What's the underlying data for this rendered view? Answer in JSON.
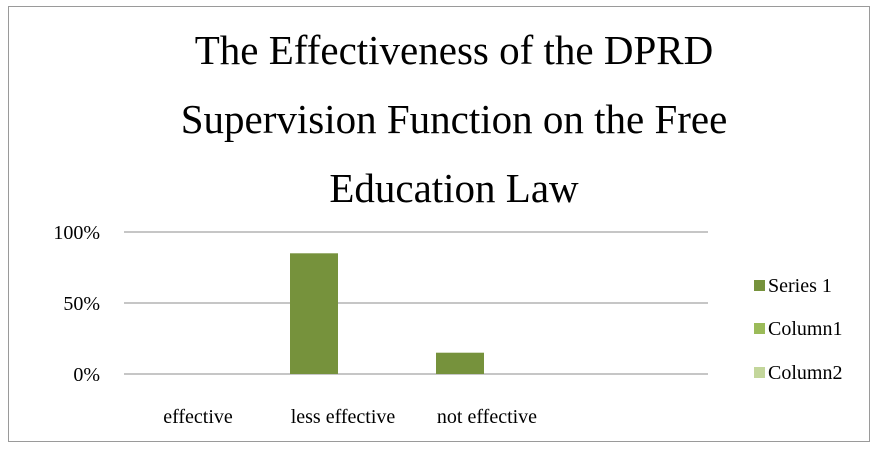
{
  "chart_data": {
    "type": "bar",
    "title_lines": [
      "The Effectiveness of the DPRD",
      "Supervision Function on the Free",
      "Education Law"
    ],
    "categories": [
      "effective",
      "less effective",
      "not effective"
    ],
    "series": [
      {
        "name": "Series 1",
        "color": "#76923c",
        "values": [
          0,
          0.85,
          0.15
        ]
      },
      {
        "name": "Column1",
        "color": "#9bbb59",
        "values": [
          null,
          null,
          null
        ]
      },
      {
        "name": "Column2",
        "color": "#c3d69b",
        "values": [
          null,
          null,
          null
        ]
      }
    ],
    "yticks": [
      {
        "value": 0,
        "label": "0%"
      },
      {
        "value": 0.5,
        "label": "50%"
      },
      {
        "value": 1,
        "label": "100%"
      }
    ],
    "ylim": [
      0,
      1
    ],
    "grid": true,
    "legend_position": "right"
  }
}
